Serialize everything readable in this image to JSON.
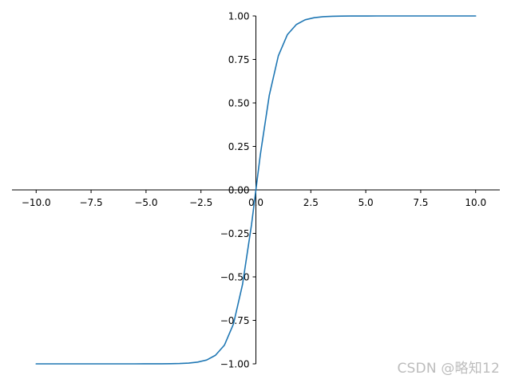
{
  "chart_data": {
    "type": "line",
    "function_shape": "tanh",
    "xlim": [
      -11.1,
      11.1
    ],
    "ylim": [
      -1.0,
      1.0
    ],
    "x_ticks": [
      -10.0,
      -7.5,
      -5.0,
      -2.5,
      0.0,
      2.5,
      5.0,
      7.5,
      10.0
    ],
    "x_tick_labels": [
      "−10.0",
      "−7.5",
      "−5.0",
      "−2.5",
      "0.0",
      "2.5",
      "5.0",
      "7.5",
      "10.0"
    ],
    "y_ticks": [
      -1.0,
      -0.75,
      -0.5,
      -0.25,
      0.0,
      0.25,
      0.5,
      0.75,
      1.0
    ],
    "y_tick_labels": [
      "−1.00",
      "−0.75",
      "−0.50",
      "−0.25",
      "0.00",
      "0.25",
      "0.50",
      "0.75",
      "1.00"
    ],
    "spines": "centered",
    "grid": false,
    "legend": "none",
    "series": [
      {
        "color": "#1f77b4",
        "x": [
          -10.0,
          -9.59,
          -9.18,
          -8.78,
          -8.37,
          -7.96,
          -7.55,
          -7.14,
          -6.73,
          -6.33,
          -5.92,
          -5.51,
          -5.1,
          -4.69,
          -4.29,
          -3.88,
          -3.47,
          -3.06,
          -2.65,
          -2.24,
          -1.84,
          -1.43,
          -1.02,
          -0.61,
          -0.2,
          0.2,
          0.61,
          1.02,
          1.43,
          1.84,
          2.24,
          2.65,
          3.06,
          3.47,
          3.88,
          4.29,
          4.69,
          5.1,
          5.51,
          5.92,
          6.33,
          6.73,
          7.14,
          7.55,
          7.96,
          8.37,
          8.78,
          9.18,
          9.59,
          10.0
        ],
        "y": [
          -1.0,
          -1.0,
          -1.0,
          -1.0,
          -1.0,
          -1.0,
          -1.0,
          -1.0,
          -1.0,
          -1.0,
          -1.0,
          -1.0,
          -0.9999,
          -0.9998,
          -0.9996,
          -0.9991,
          -0.998,
          -0.9956,
          -0.9901,
          -0.978,
          -0.9507,
          -0.8921,
          -0.7701,
          -0.5446,
          -0.2005,
          0.2005,
          0.5446,
          0.7701,
          0.8921,
          0.9507,
          0.978,
          0.9901,
          0.9956,
          0.998,
          0.9991,
          0.9996,
          0.9998,
          0.9999,
          1.0,
          1.0,
          1.0,
          1.0,
          1.0,
          1.0,
          1.0,
          1.0,
          1.0,
          1.0,
          1.0,
          1.0
        ]
      }
    ]
  },
  "watermark": "CSDN @略知12"
}
